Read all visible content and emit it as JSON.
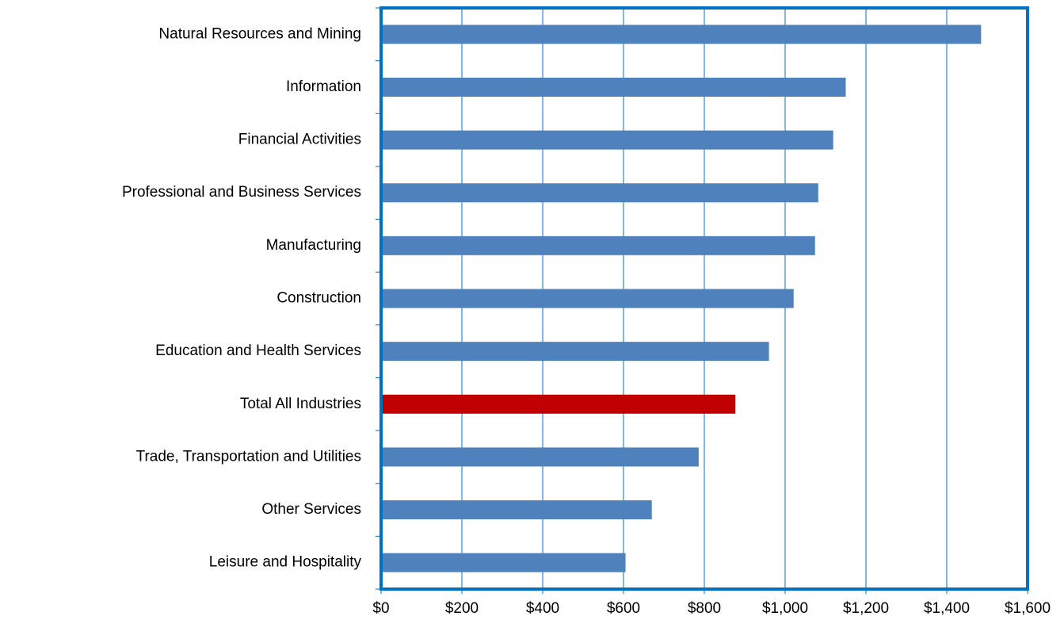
{
  "chart_data": {
    "type": "hbar",
    "categories": [
      "Natural Resources and Mining",
      "Information",
      "Financial Activities",
      "Professional and Business Services",
      "Manufacturing",
      "Construction",
      "Education and Health Services",
      "Total All Industries",
      "Trade, Transportation and Utilities",
      "Other Services",
      "Leisure and Hospitality"
    ],
    "values": [
      1485,
      1150,
      1119,
      1082,
      1074,
      1021,
      960,
      877,
      786,
      670,
      605
    ],
    "colors": [
      "#4f81bd",
      "#4f81bd",
      "#4f81bd",
      "#4f81bd",
      "#4f81bd",
      "#4f81bd",
      "#4f81bd",
      "#c00000",
      "#4f81bd",
      "#4f81bd",
      "#4f81bd"
    ],
    "xlim": [
      0,
      1600
    ],
    "xticks": [
      {
        "value": 0,
        "label": "$0"
      },
      {
        "value": 200,
        "label": "$200"
      },
      {
        "value": 400,
        "label": "$400"
      },
      {
        "value": 600,
        "label": "$600"
      },
      {
        "value": 800,
        "label": "$800"
      },
      {
        "value": 1000,
        "label": "$1,000"
      },
      {
        "value": 1200,
        "label": "$1,200"
      },
      {
        "value": 1400,
        "label": "$1,400"
      },
      {
        "value": 1600,
        "label": "$1,600"
      }
    ],
    "grid": true,
    "frame_color": "#0070c0"
  }
}
